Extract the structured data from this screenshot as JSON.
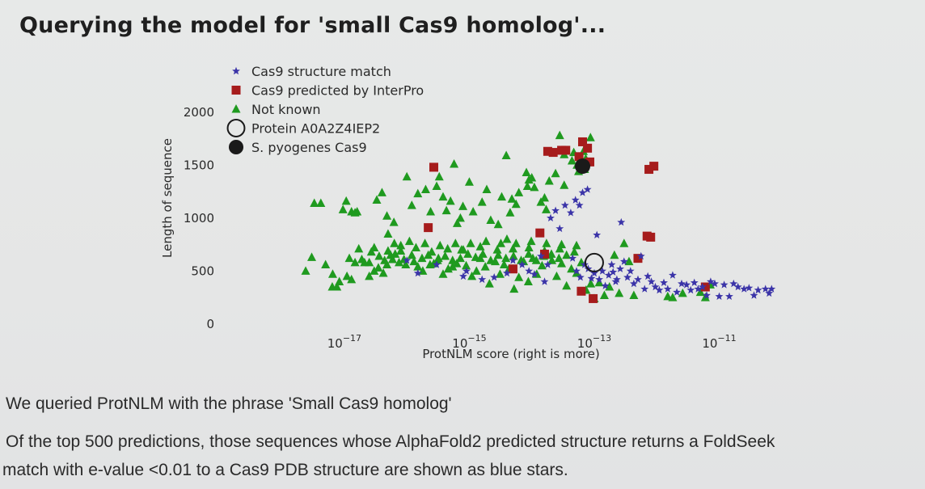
{
  "slide": {
    "title": "Querying the model for 'small Cas9 homolog'...",
    "caption1": "We queried ProtNLM with the phrase 'Small Cas9 homolog'",
    "caption2": "Of the top 500 predictions, those sequences whose AlphaFold2 predicted structure returns a FoldSeek",
    "caption3": "match with e-value <0.01 to a Cas9 PDB structure are shown as blue stars."
  },
  "chart_data": {
    "type": "scatter",
    "xlabel": "ProtNLM score (right is more)",
    "ylabel": "Length of sequence",
    "x_scale": "log",
    "xlim": [
      1.5e-19,
      2e-10
    ],
    "ylim": [
      -100,
      2250
    ],
    "x_ticks": [
      {
        "value": 1e-17,
        "base": "10",
        "exp": "−17"
      },
      {
        "value": 1e-15,
        "base": "10",
        "exp": "−15"
      },
      {
        "value": 1e-13,
        "base": "10",
        "exp": "−13"
      },
      {
        "value": 1e-11,
        "base": "10",
        "exp": "−11"
      }
    ],
    "y_ticks": [
      0,
      500,
      1000,
      1500,
      2000
    ],
    "grid": false,
    "legend_position": "top-left",
    "colors": {
      "star": "#3b34a8",
      "square": "#a61c1c",
      "triangle": "#1f9a1f",
      "circle": "#1a1a1a"
    },
    "series": [
      {
        "name": "Cas9 structure match",
        "marker": "star",
        "points": [
          [
            1e-16,
            600
          ],
          [
            1.5e-16,
            480
          ],
          [
            8e-16,
            450
          ],
          [
            1.6e-15,
            420
          ],
          [
            2.5e-15,
            440
          ],
          [
            4e-15,
            480
          ],
          [
            5e-15,
            600
          ],
          [
            7e-15,
            560
          ],
          [
            9e-15,
            500
          ],
          [
            1.1e-14,
            470
          ],
          [
            1.4e-14,
            640
          ],
          [
            1.8e-14,
            560
          ],
          [
            2e-14,
            1000
          ],
          [
            2.4e-14,
            1070
          ],
          [
            2.8e-14,
            900
          ],
          [
            3.4e-14,
            1120
          ],
          [
            4.2e-14,
            1050
          ],
          [
            5e-14,
            1170
          ],
          [
            5.8e-14,
            1120
          ],
          [
            6.5e-14,
            1240
          ],
          [
            7.8e-14,
            1270
          ],
          [
            4.5e-14,
            620
          ],
          [
            5.2e-14,
            500
          ],
          [
            6e-14,
            440
          ],
          [
            7e-14,
            560
          ],
          [
            8e-14,
            520
          ],
          [
            9e-14,
            430
          ],
          [
            1e-13,
            480
          ],
          [
            1.1e-13,
            840
          ],
          [
            1.2e-13,
            420
          ],
          [
            1.35e-13,
            500
          ],
          [
            1.5e-13,
            360
          ],
          [
            1.7e-13,
            460
          ],
          [
            2e-13,
            490
          ],
          [
            2.3e-13,
            420
          ],
          [
            2.7e-13,
            960
          ],
          [
            3e-13,
            590
          ],
          [
            3.4e-13,
            440
          ],
          [
            3.8e-13,
            500
          ],
          [
            4.3e-13,
            380
          ],
          [
            5e-13,
            420
          ],
          [
            5.6e-13,
            640
          ],
          [
            6.4e-13,
            330
          ],
          [
            7.2e-13,
            450
          ],
          [
            8.2e-13,
            400
          ],
          [
            9.5e-13,
            350
          ],
          [
            1.1e-12,
            320
          ],
          [
            1.3e-12,
            390
          ],
          [
            1.5e-12,
            330
          ],
          [
            1.8e-12,
            460
          ],
          [
            2.1e-12,
            300
          ],
          [
            2.5e-12,
            380
          ],
          [
            3e-12,
            370
          ],
          [
            3.5e-12,
            320
          ],
          [
            4e-12,
            390
          ],
          [
            4.6e-12,
            330
          ],
          [
            5.4e-12,
            350
          ],
          [
            6.3e-12,
            270
          ],
          [
            7.3e-12,
            400
          ],
          [
            8.5e-12,
            380
          ],
          [
            1e-11,
            260
          ],
          [
            1.2e-11,
            370
          ],
          [
            1.45e-11,
            260
          ],
          [
            1.7e-11,
            380
          ],
          [
            2e-11,
            350
          ],
          [
            2.5e-11,
            330
          ],
          [
            3e-11,
            340
          ],
          [
            3.6e-11,
            270
          ],
          [
            4.2e-11,
            320
          ],
          [
            5.5e-11,
            330
          ],
          [
            6.3e-11,
            290
          ],
          [
            6.9e-11,
            330
          ],
          [
            2.2e-13,
            400
          ],
          [
            1.6e-14,
            400
          ],
          [
            9e-16,
            500
          ],
          [
            3e-16,
            560
          ],
          [
            1.9e-13,
            560
          ],
          [
            2.6e-13,
            520
          ]
        ]
      },
      {
        "name": "Cas9 predicted by InterPro",
        "marker": "square",
        "points": [
          [
            2.7e-16,
            1480
          ],
          [
            2.2e-16,
            910
          ],
          [
            5e-15,
            520
          ],
          [
            1.8e-14,
            1630
          ],
          [
            2.2e-14,
            1620
          ],
          [
            3e-14,
            1640
          ],
          [
            3.5e-14,
            1640
          ],
          [
            1.35e-14,
            860
          ],
          [
            1.6e-14,
            660
          ],
          [
            6.5e-14,
            1720
          ],
          [
            7.8e-14,
            1660
          ],
          [
            8.5e-14,
            1530
          ],
          [
            5.7e-14,
            1580
          ],
          [
            6.2e-14,
            310
          ],
          [
            9.6e-14,
            240
          ],
          [
            5e-13,
            620
          ],
          [
            7e-13,
            830
          ],
          [
            8e-13,
            820
          ],
          [
            7.5e-13,
            1460
          ],
          [
            9e-13,
            1490
          ],
          [
            6e-12,
            350
          ]
        ]
      },
      {
        "name": "Not known",
        "marker": "triangle",
        "points": [
          [
            2.4e-18,
            500
          ],
          [
            3.3e-18,
            1140
          ],
          [
            4.2e-18,
            1140
          ],
          [
            3e-18,
            630
          ],
          [
            5e-18,
            560
          ],
          [
            6.5e-18,
            470
          ],
          [
            8.3e-18,
            400
          ],
          [
            9.5e-18,
            1080
          ],
          [
            1.07e-17,
            1160
          ],
          [
            1.3e-17,
            1060
          ],
          [
            1.6e-17,
            1060
          ],
          [
            1.9e-17,
            610
          ],
          [
            2.5e-17,
            580
          ],
          [
            3.3e-17,
            1170
          ],
          [
            4e-17,
            1240
          ],
          [
            5e-17,
            850
          ],
          [
            5.5e-17,
            650
          ],
          [
            6.5e-17,
            660
          ],
          [
            8e-17,
            690
          ],
          [
            1e-16,
            1390
          ],
          [
            1.2e-16,
            1120
          ],
          [
            1.5e-16,
            1230
          ],
          [
            2e-16,
            1270
          ],
          [
            2.4e-16,
            1060
          ],
          [
            3e-16,
            1300
          ],
          [
            3.3e-16,
            1390
          ],
          [
            3.8e-16,
            1200
          ],
          [
            4.3e-16,
            1070
          ],
          [
            5e-16,
            1160
          ],
          [
            5.7e-16,
            1510
          ],
          [
            6.4e-16,
            950
          ],
          [
            7.2e-16,
            1000
          ],
          [
            7.9e-16,
            1110
          ],
          [
            1.15e-15,
            1060
          ],
          [
            1.6e-15,
            1150
          ],
          [
            1.9e-15,
            1270
          ],
          [
            2.2e-15,
            980
          ],
          [
            3.3e-15,
            1200
          ],
          [
            3.9e-15,
            1590
          ],
          [
            4.5e-15,
            1050
          ],
          [
            5.6e-15,
            1130
          ],
          [
            6.2e-15,
            1240
          ],
          [
            8.2e-15,
            1430
          ],
          [
            9e-15,
            1360
          ],
          [
            1e-14,
            1380
          ],
          [
            1.1e-14,
            1290
          ],
          [
            1.4e-14,
            1150
          ],
          [
            1.7e-14,
            1080
          ],
          [
            1.9e-14,
            1350
          ],
          [
            2.4e-14,
            1420
          ],
          [
            2.8e-14,
            1780
          ],
          [
            3.3e-14,
            1310
          ],
          [
            4.7e-14,
            1620
          ],
          [
            5.3e-14,
            1500
          ],
          [
            6e-14,
            1460
          ],
          [
            7e-14,
            1460
          ],
          [
            8.7e-14,
            1760
          ],
          [
            7.3e-14,
            1560
          ],
          [
            6.7e-14,
            1630
          ],
          [
            6.4e-18,
            350
          ],
          [
            7.6e-18,
            350
          ],
          [
            1.1e-17,
            450
          ],
          [
            1.3e-17,
            420
          ],
          [
            2.5e-17,
            450
          ],
          [
            3e-17,
            500
          ],
          [
            3.5e-17,
            530
          ],
          [
            4.2e-17,
            480
          ],
          [
            4.8e-17,
            560
          ],
          [
            7.5e-17,
            580
          ],
          [
            9e-17,
            610
          ],
          [
            1.2e-16,
            650
          ],
          [
            1.5e-16,
            540
          ],
          [
            1.8e-16,
            500
          ],
          [
            2.2e-16,
            650
          ],
          [
            2.7e-16,
            570
          ],
          [
            3.2e-16,
            620
          ],
          [
            3.8e-16,
            470
          ],
          [
            4.6e-16,
            520
          ],
          [
            5.4e-16,
            600
          ],
          [
            6.3e-16,
            570
          ],
          [
            7.5e-16,
            700
          ],
          [
            8.9e-16,
            550
          ],
          [
            1.1e-15,
            450
          ],
          [
            1.3e-15,
            500
          ],
          [
            1.5e-15,
            620
          ],
          [
            1.8e-15,
            540
          ],
          [
            2.1e-15,
            380
          ],
          [
            2.6e-15,
            590
          ],
          [
            3.1e-15,
            470
          ],
          [
            3.6e-15,
            560
          ],
          [
            4.3e-15,
            520
          ],
          [
            5.2e-15,
            330
          ],
          [
            6.2e-15,
            440
          ],
          [
            7.4e-15,
            590
          ],
          [
            8.8e-15,
            400
          ],
          [
            1.04e-14,
            620
          ],
          [
            1.2e-14,
            470
          ],
          [
            1.46e-14,
            550
          ],
          [
            1.75e-14,
            650
          ],
          [
            2.1e-14,
            600
          ],
          [
            2.5e-14,
            450
          ],
          [
            3e-14,
            570
          ],
          [
            3.6e-14,
            360
          ],
          [
            4.3e-14,
            520
          ],
          [
            5.2e-14,
            480
          ],
          [
            6.2e-14,
            580
          ],
          [
            7.4e-14,
            320
          ],
          [
            8.8e-14,
            380
          ],
          [
            1e-13,
            240
          ],
          [
            1.2e-13,
            390
          ],
          [
            1.45e-13,
            270
          ],
          [
            1.75e-13,
            350
          ],
          [
            2.1e-13,
            650
          ],
          [
            2.5e-13,
            290
          ],
          [
            3e-13,
            760
          ],
          [
            3.6e-13,
            590
          ],
          [
            4.3e-13,
            270
          ],
          [
            1.5e-12,
            260
          ],
          [
            1.8e-12,
            250
          ],
          [
            2.6e-12,
            290
          ],
          [
            5e-12,
            300
          ],
          [
            6e-12,
            250
          ],
          [
            7.2e-12,
            370
          ],
          [
            1.7e-17,
            710
          ],
          [
            3e-17,
            720
          ],
          [
            5e-17,
            690
          ],
          [
            8e-17,
            740
          ],
          [
            1.4e-16,
            720
          ],
          [
            2.5e-16,
            680
          ],
          [
            4.5e-16,
            710
          ],
          [
            8e-16,
            700
          ],
          [
            1.5e-15,
            730
          ],
          [
            2.8e-15,
            700
          ],
          [
            5e-15,
            710
          ],
          [
            9e-15,
            720
          ],
          [
            1.6e-14,
            690
          ],
          [
            2.8e-14,
            710
          ],
          [
            4.8e-14,
            680
          ],
          [
            3.3e-14,
            1600
          ],
          [
            4.4e-14,
            1540
          ],
          [
            5.6e-14,
            1440
          ],
          [
            1e-15,
            1340
          ],
          [
            8.5e-15,
            1300
          ],
          [
            1.6e-14,
            1190
          ],
          [
            2.9e-15,
            940
          ],
          [
            4.8e-15,
            1180
          ],
          [
            4.8e-17,
            1020
          ],
          [
            6.2e-17,
            960
          ],
          [
            1.48e-17,
            1050
          ],
          [
            1.48e-17,
            580
          ],
          [
            1.2e-17,
            620
          ],
          [
            2.1e-17,
            580
          ],
          [
            2.7e-17,
            680
          ],
          [
            3.6e-17,
            640
          ],
          [
            4.4e-17,
            600
          ],
          [
            5.9e-17,
            610
          ],
          [
            9.6e-17,
            560
          ],
          [
            1.3e-16,
            590
          ],
          [
            1.75e-16,
            620
          ],
          [
            2.35e-16,
            560
          ],
          [
            3.1e-16,
            600
          ],
          [
            4.1e-16,
            640
          ],
          [
            5.4e-16,
            540
          ],
          [
            7.2e-16,
            620
          ],
          [
            9.5e-16,
            660
          ],
          [
            1.26e-15,
            630
          ],
          [
            1.65e-15,
            660
          ],
          [
            2.2e-15,
            600
          ],
          [
            2.9e-15,
            650
          ],
          [
            3.85e-15,
            620
          ],
          [
            5.1e-15,
            640
          ],
          [
            6.75e-15,
            600
          ],
          [
            8.9e-15,
            660
          ],
          [
            1.18e-14,
            600
          ],
          [
            1.56e-14,
            640
          ],
          [
            2.06e-14,
            660
          ],
          [
            2.72e-14,
            620
          ],
          [
            3.6e-14,
            650
          ],
          [
            6.3e-17,
            760
          ],
          [
            1.1e-16,
            780
          ],
          [
            1.95e-16,
            760
          ],
          [
            3.4e-16,
            740
          ],
          [
            6e-16,
            760
          ],
          [
            1.05e-15,
            760
          ],
          [
            1.85e-15,
            780
          ],
          [
            3.2e-15,
            760
          ],
          [
            5.6e-15,
            760
          ],
          [
            9.8e-15,
            780
          ],
          [
            1.72e-14,
            760
          ],
          [
            3e-14,
            750
          ],
          [
            5.2e-14,
            740
          ],
          [
            4e-15,
            800
          ]
        ]
      },
      {
        "name": "Protein A0A2Z4IEP2",
        "marker": "circle-open",
        "points": [
          [
            1e-13,
            580
          ]
        ]
      },
      {
        "name": "S. pyogenes Cas9",
        "marker": "circle-filled",
        "points": [
          [
            6.5e-14,
            1490
          ]
        ]
      }
    ]
  }
}
